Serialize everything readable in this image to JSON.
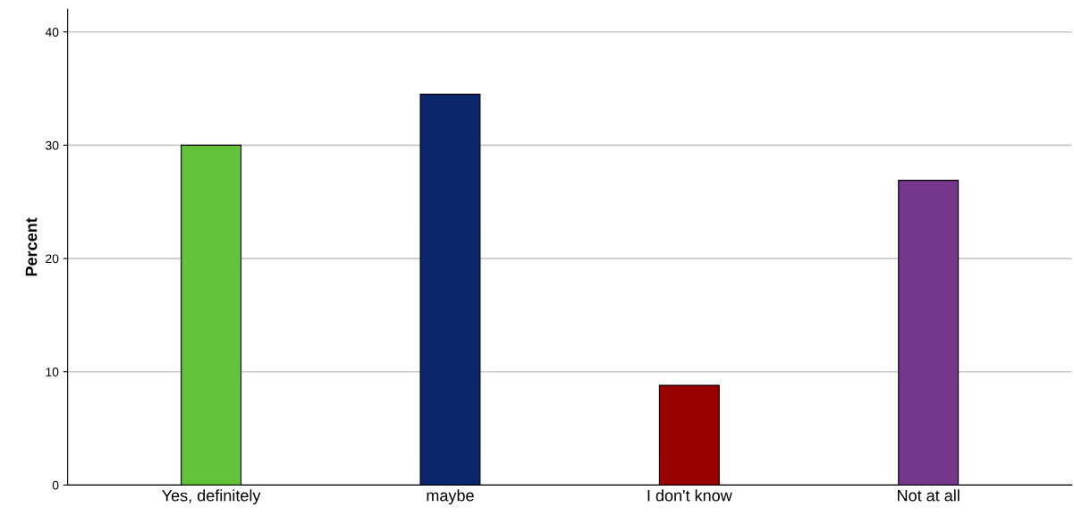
{
  "chart_data": {
    "type": "bar",
    "ylabel": "Percent",
    "categories": [
      "Yes, definitely",
      "maybe",
      "I don't know",
      "Not at all"
    ],
    "values": [
      30.0,
      34.5,
      8.8,
      26.9
    ],
    "colors": [
      "#62c23a",
      "#0b266b",
      "#990000",
      "#74378c"
    ],
    "ylim": [
      0,
      42
    ],
    "yticks": [
      0,
      10,
      20,
      30,
      40
    ],
    "grid": "y",
    "legend": false
  }
}
